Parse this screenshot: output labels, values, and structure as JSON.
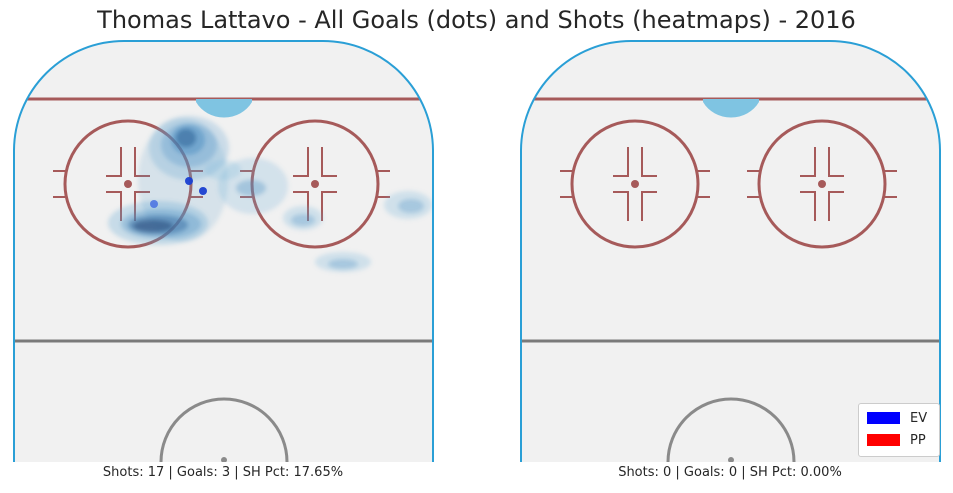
{
  "title": "Thomas Lattavo - All Goals (dots) and Shots (heatmaps) - 2016",
  "colors": {
    "ice": "#f1f1f1",
    "boards": "#2a9fd6",
    "red_line": "#a65a5a",
    "blue_line": "#7a7a7a",
    "crease": "#7fc4e2",
    "ev": "#0000ff",
    "pp": "#ff0000"
  },
  "chart_data": [
    {
      "type": "heatmap",
      "panel": "left",
      "caption": "Shots: 17 | Goals: 3 | SH Pct: 17.65%",
      "shots": 17,
      "goals": 3,
      "sh_pct": "17.65%",
      "goal_dots": [
        {
          "x": 141,
          "y": 164,
          "strength": "EV"
        },
        {
          "x": 176,
          "y": 141,
          "strength": "EV"
        },
        {
          "x": 190,
          "y": 151,
          "strength": "EV"
        }
      ]
    },
    {
      "type": "heatmap",
      "panel": "right",
      "caption": "Shots: 0 | Goals: 0 | SH Pct: 0.00%",
      "shots": 0,
      "goals": 0,
      "sh_pct": "0.00%",
      "goal_dots": []
    }
  ],
  "legend": {
    "items": [
      {
        "label": "EV",
        "color": "#0000ff"
      },
      {
        "label": "PP",
        "color": "#ff0000"
      }
    ]
  }
}
